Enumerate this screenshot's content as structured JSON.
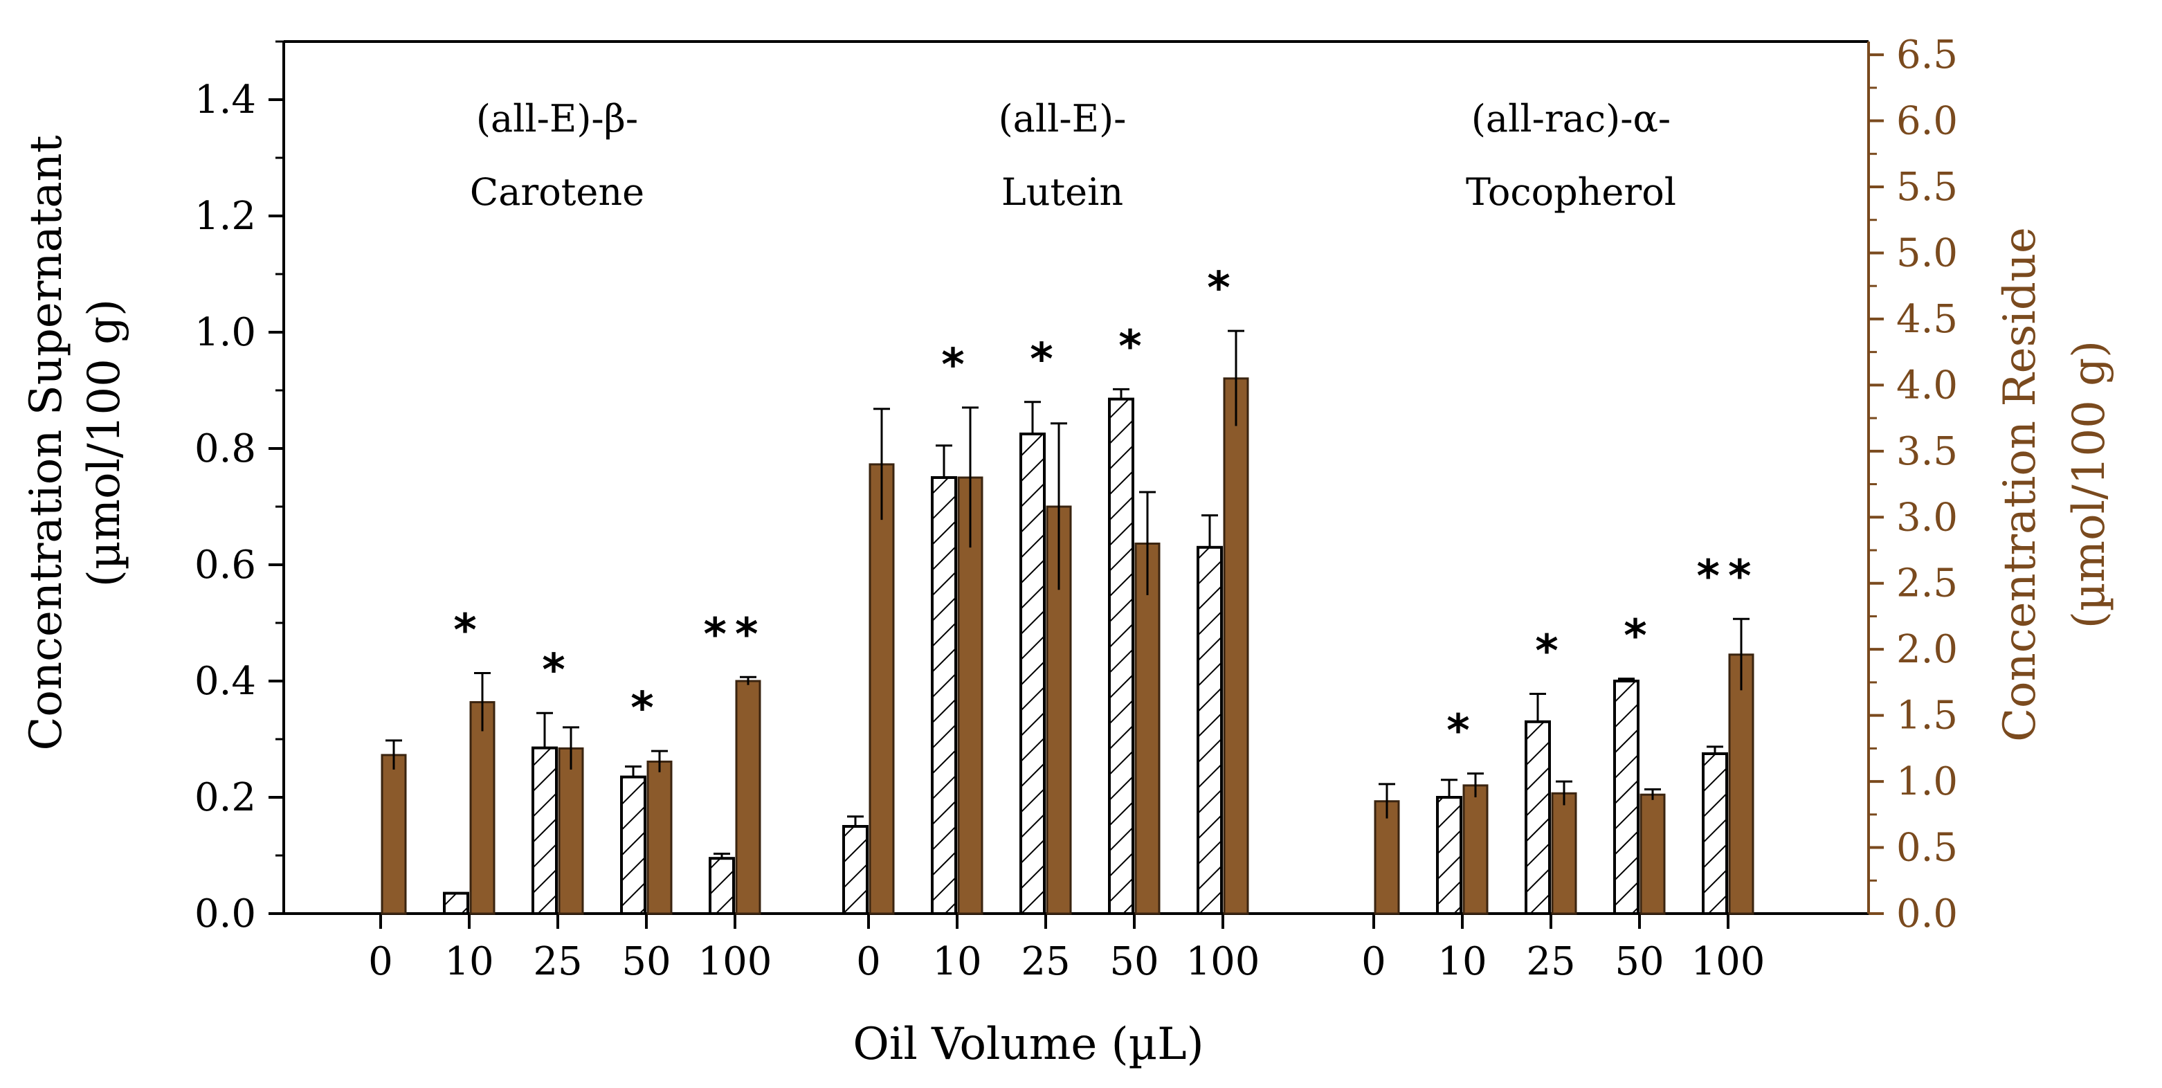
{
  "colors": {
    "axis": "#000000",
    "residue": "#8b5a2b",
    "residue_axis": "#7a4a1e",
    "supernatant_fill": "#ffffff"
  },
  "chart_data": {
    "type": "bar",
    "xlabel": "Oil Volume (µL)",
    "ylabel_left_line1": "Concentration Supernatant",
    "ylabel_left_line2": "(µmol/100 g)",
    "ylabel_right_line1": "Concentration Residue",
    "ylabel_right_line2": "(µmol/100 g)",
    "ylim_left": [
      0,
      1.5
    ],
    "ylim_right": [
      0,
      6.6
    ],
    "yticks_left": [
      "0.0",
      "0.2",
      "0.4",
      "0.6",
      "0.8",
      "1.0",
      "1.2",
      "1.4"
    ],
    "yticks_right": [
      "0.0",
      "0.5",
      "1.0",
      "1.5",
      "2.0",
      "2.5",
      "3.0",
      "3.5",
      "4.0",
      "4.5",
      "5.0",
      "5.5",
      "6.0",
      "6.5"
    ],
    "series": [
      {
        "name": "Supernatant",
        "axis": "left",
        "pattern": "hatched"
      },
      {
        "name": "Residue",
        "axis": "right",
        "pattern": "solid"
      }
    ],
    "groups": [
      {
        "title_line1": "(all-E)-β-",
        "title_line2": "Carotene",
        "categories": [
          "0",
          "10",
          "25",
          "50",
          "100"
        ],
        "supernatant": [
          0,
          0.035,
          0.285,
          0.235,
          0.095
        ],
        "supernatant_err": [
          0,
          0,
          0.06,
          0.018,
          0.008
        ],
        "residue": [
          1.2,
          1.6,
          1.25,
          1.15,
          1.76
        ],
        "residue_err": [
          0.11,
          0.22,
          0.16,
          0.08,
          0.03
        ],
        "stars": [
          "",
          "*",
          "*",
          "*",
          "**"
        ]
      },
      {
        "title_line1": "(all-E)-",
        "title_line2": "Lutein",
        "categories": [
          "0",
          "10",
          "25",
          "50",
          "100"
        ],
        "supernatant": [
          0.15,
          0.75,
          0.825,
          0.885,
          0.63
        ],
        "supernatant_err": [
          0.017,
          0.055,
          0.055,
          0.017,
          0.055
        ],
        "residue": [
          3.4,
          3.3,
          3.08,
          2.8,
          4.05
        ],
        "residue_err": [
          0.42,
          0.53,
          0.63,
          0.39,
          0.36
        ],
        "stars": [
          "",
          "*",
          "*",
          "*",
          "*"
        ]
      },
      {
        "title_line1": "(all-rac)-α-",
        "title_line2": "Tocopherol",
        "categories": [
          "0",
          "10",
          "25",
          "50",
          "100"
        ],
        "supernatant": [
          0,
          0.2,
          0.33,
          0.4,
          0.275
        ],
        "supernatant_err": [
          0,
          0.03,
          0.048,
          0.004,
          0.012
        ],
        "residue": [
          0.85,
          0.97,
          0.91,
          0.9,
          1.96
        ],
        "residue_err": [
          0.13,
          0.09,
          0.09,
          0.04,
          0.27
        ],
        "stars": [
          "",
          "*",
          "*",
          "*",
          "**"
        ]
      }
    ]
  }
}
